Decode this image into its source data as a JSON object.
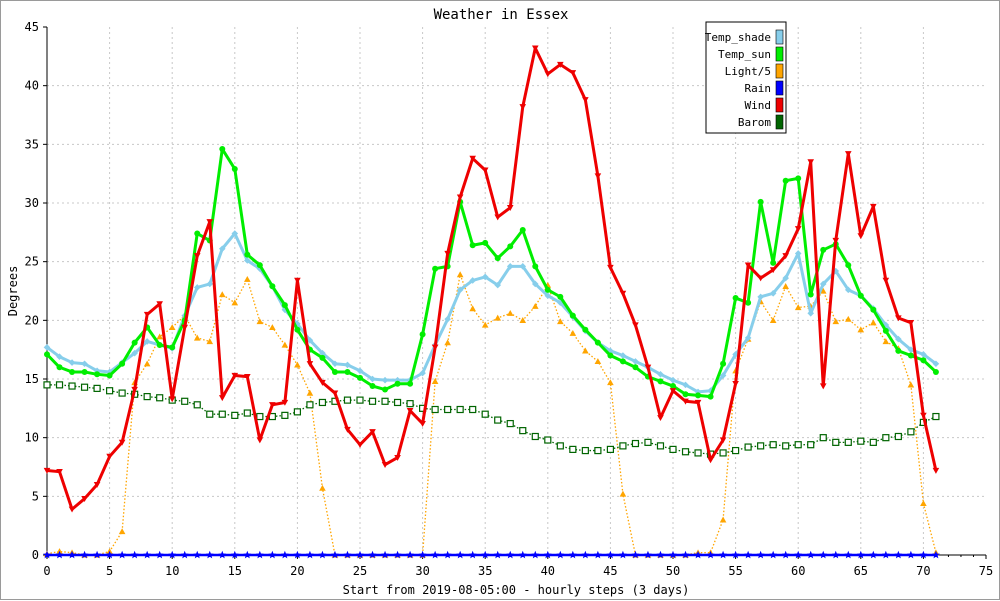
{
  "chart_data": {
    "type": "line",
    "title": "Weather in Essex",
    "xlabel": "Start from 2019-08-05:00 - hourly steps (3 days)",
    "ylabel": "Degrees",
    "xlim": [
      0,
      75
    ],
    "ylim": [
      0,
      45
    ],
    "x_ticks": [
      0,
      5,
      10,
      15,
      20,
      25,
      30,
      35,
      40,
      45,
      50,
      55,
      60,
      65,
      70,
      75
    ],
    "y_ticks": [
      0,
      5,
      10,
      15,
      20,
      25,
      30,
      35,
      40,
      45
    ],
    "grid": true,
    "legend_position": "top-right",
    "x": [
      0,
      1,
      2,
      3,
      4,
      5,
      6,
      7,
      8,
      9,
      10,
      11,
      12,
      13,
      14,
      15,
      16,
      17,
      18,
      19,
      20,
      21,
      22,
      23,
      24,
      25,
      26,
      27,
      28,
      29,
      30,
      31,
      32,
      33,
      34,
      35,
      36,
      37,
      38,
      39,
      40,
      41,
      42,
      43,
      44,
      45,
      46,
      47,
      48,
      49,
      50,
      51,
      52,
      53,
      54,
      55,
      56,
      57,
      58,
      59,
      60,
      61,
      62,
      63,
      64,
      65,
      66,
      67,
      68,
      69,
      70,
      71
    ],
    "series": [
      {
        "name": "Temp_shade",
        "color": "#87ceeb",
        "marker": "diamond",
        "values": [
          17.7,
          16.9,
          16.4,
          16.3,
          15.7,
          15.6,
          16.4,
          17.2,
          18.2,
          17.9,
          17.6,
          20.4,
          22.8,
          23.1,
          26.1,
          27.4,
          25.1,
          24.4,
          22.9,
          20.9,
          19.7,
          18.3,
          17.2,
          16.3,
          16.2,
          15.7,
          15.0,
          14.9,
          14.9,
          14.9,
          15.5,
          17.9,
          20.1,
          22.6,
          23.4,
          23.7,
          23.0,
          24.6,
          24.6,
          23.1,
          22.1,
          21.5,
          20.3,
          19.1,
          18.1,
          17.4,
          17.0,
          16.5,
          16.0,
          15.4,
          14.9,
          14.5,
          13.9,
          14.0,
          15.3,
          17.1,
          18.5,
          22.0,
          22.3,
          23.6,
          25.7,
          20.6,
          23.1,
          24.2,
          22.6,
          22.1,
          21.0,
          19.6,
          18.4,
          17.5,
          17.1,
          16.3
        ]
      },
      {
        "name": "Temp_sun",
        "color": "#00ee00",
        "marker": "circle",
        "values": [
          17.1,
          16.0,
          15.6,
          15.6,
          15.4,
          15.3,
          16.3,
          18.1,
          19.4,
          17.9,
          17.7,
          20.0,
          27.4,
          26.8,
          34.6,
          32.9,
          25.6,
          24.7,
          22.9,
          21.3,
          19.2,
          17.5,
          16.8,
          15.6,
          15.6,
          15.1,
          14.4,
          14.1,
          14.6,
          14.6,
          18.8,
          24.4,
          24.6,
          30.1,
          26.4,
          26.6,
          25.3,
          26.3,
          27.7,
          24.6,
          22.6,
          22.0,
          20.4,
          19.2,
          18.1,
          17.0,
          16.5,
          16.0,
          15.2,
          14.8,
          14.4,
          13.7,
          13.6,
          13.5,
          16.3,
          21.9,
          21.5,
          30.1,
          24.9,
          31.9,
          32.1,
          22.2,
          26.0,
          26.5,
          24.7,
          22.1,
          20.9,
          19.1,
          17.4,
          17.0,
          16.6,
          15.6
        ]
      },
      {
        "name": "Light/5",
        "color": "#ffa500",
        "marker": "triangle",
        "values": [
          0.1,
          0.3,
          0.2,
          0,
          0,
          0.3,
          2.0,
          14.7,
          16.3,
          18.6,
          19.4,
          20.4,
          18.5,
          18.2,
          22.2,
          21.5,
          23.5,
          19.9,
          19.4,
          17.9,
          16.2,
          13.8,
          5.7,
          0,
          0,
          0,
          0,
          0,
          0,
          0,
          0,
          14.8,
          18.1,
          23.9,
          21.0,
          19.6,
          20.2,
          20.6,
          20.0,
          21.2,
          23.0,
          19.9,
          18.9,
          17.4,
          16.5,
          14.7,
          5.2,
          0,
          0,
          0,
          0,
          0,
          0.2,
          0.2,
          3.0,
          15.7,
          18.4,
          21.6,
          20.0,
          22.9,
          21.1,
          21.2,
          22.5,
          19.9,
          20.1,
          19.2,
          19.8,
          18.2,
          17.6,
          14.5,
          4.4,
          0.2
        ]
      },
      {
        "name": "Rain",
        "color": "#0000ff",
        "marker": "star",
        "values": [
          0,
          0,
          0,
          0,
          0,
          0,
          0,
          0,
          0,
          0,
          0,
          0,
          0,
          0,
          0,
          0,
          0,
          0,
          0,
          0,
          0,
          0,
          0,
          0,
          0,
          0,
          0,
          0,
          0,
          0,
          0,
          0,
          0,
          0,
          0,
          0,
          0,
          0,
          0,
          0,
          0,
          0,
          0,
          0,
          0,
          0,
          0,
          0,
          0,
          0,
          0,
          0,
          0,
          0,
          0,
          0,
          0,
          0,
          0,
          0,
          0,
          0,
          0,
          0,
          0,
          0,
          0,
          0,
          0,
          0,
          0,
          0
        ]
      },
      {
        "name": "Wind",
        "color": "#ee0000",
        "marker": "triangle-down",
        "values": [
          7.2,
          7.1,
          3.9,
          4.8,
          6.0,
          8.4,
          9.6,
          14.1,
          20.5,
          21.4,
          13.3,
          19.4,
          25.5,
          28.4,
          13.4,
          15.3,
          15.2,
          9.8,
          12.8,
          13.0,
          23.4,
          16.3,
          14.7,
          13.8,
          10.7,
          9.4,
          10.5,
          7.7,
          8.3,
          12.3,
          11.2,
          17.7,
          25.7,
          30.5,
          33.8,
          32.8,
          28.8,
          29.6,
          38.2,
          43.2,
          41.0,
          41.8,
          41.1,
          38.8,
          32.3,
          24.5,
          22.3,
          19.6,
          16.0,
          11.7,
          14.0,
          13.1,
          13.0,
          8.1,
          9.8,
          14.6,
          24.7,
          23.6,
          24.3,
          25.5,
          27.8,
          33.5,
          14.4,
          26.8,
          34.2,
          27.2,
          29.7,
          23.4,
          20.2,
          19.8,
          11.9,
          7.2
        ]
      },
      {
        "name": "Barom",
        "color": "#006400",
        "marker": "square",
        "values": [
          14.5,
          14.5,
          14.4,
          14.3,
          14.2,
          14.0,
          13.8,
          13.7,
          13.5,
          13.4,
          13.2,
          13.1,
          12.8,
          12.0,
          12.0,
          11.9,
          12.1,
          11.8,
          11.8,
          11.9,
          12.2,
          12.8,
          13.0,
          13.1,
          13.2,
          13.2,
          13.1,
          13.1,
          13.0,
          12.9,
          12.5,
          12.4,
          12.4,
          12.4,
          12.4,
          12.0,
          11.5,
          11.2,
          10.6,
          10.1,
          9.8,
          9.3,
          9.0,
          8.9,
          8.9,
          9.0,
          9.3,
          9.5,
          9.6,
          9.3,
          9.0,
          8.8,
          8.7,
          8.6,
          8.7,
          8.9,
          9.2,
          9.3,
          9.4,
          9.3,
          9.4,
          9.4,
          10.0,
          9.6,
          9.6,
          9.7,
          9.6,
          10.0,
          10.1,
          10.5,
          11.3,
          11.8
        ]
      }
    ]
  }
}
